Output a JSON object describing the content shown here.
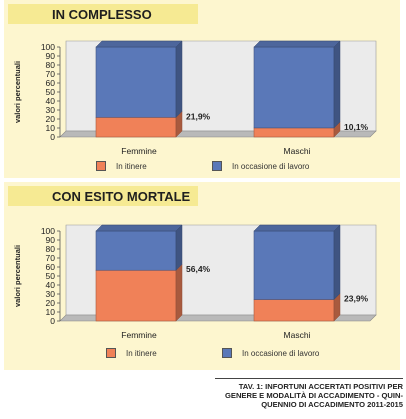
{
  "chart_data": [
    {
      "type": "bar",
      "stacked": true,
      "title": "IN COMPLESSO",
      "ylabel": "valori percentuali",
      "ylim": [
        0,
        100
      ],
      "yticks": [
        0,
        10,
        20,
        30,
        40,
        50,
        60,
        70,
        80,
        90,
        100
      ],
      "categories": [
        "Femmine",
        "Maschi"
      ],
      "series": [
        {
          "name": "In itinere",
          "values": [
            21.9,
            10.1
          ],
          "color": "#f08158"
        },
        {
          "name": "In occasione di lavoro",
          "values": [
            78.1,
            89.9
          ],
          "color": "#5a78b8"
        }
      ],
      "data_labels": [
        "21,9%",
        "10,1%"
      ],
      "legend": "bottom",
      "grid": false
    },
    {
      "type": "bar",
      "stacked": true,
      "title": "CON ESITO MORTALE",
      "ylabel": "valori percentuali",
      "ylim": [
        0,
        100
      ],
      "yticks": [
        0,
        10,
        20,
        30,
        40,
        50,
        60,
        70,
        80,
        90,
        100
      ],
      "categories": [
        "Femmine",
        "Maschi"
      ],
      "series": [
        {
          "name": "In itinere",
          "values": [
            56.4,
            23.9
          ],
          "color": "#f08158"
        },
        {
          "name": "In occasione di lavoro",
          "values": [
            43.6,
            76.1
          ],
          "color": "#5a78b8"
        }
      ],
      "data_labels": [
        "56,4%",
        "23,9%"
      ],
      "legend": "bottom",
      "grid": false
    }
  ],
  "caption": {
    "line1": "TAV. 1: INFORTUNI ACCERTATI POSITIVI PER",
    "line2": "GENERE E MODALITÀ DI ACCADIMENTO - QUIN-",
    "line3": "QUENNIO DI ACCADIMENTO 2011-2015"
  },
  "colors": {
    "panel_bg": "#fdf6cf",
    "title_bg": "#f6ea93",
    "wall": "#ebebeb",
    "floor": "#b9b9b9",
    "bar_blue": "#5a78b8",
    "bar_orange": "#f08158"
  }
}
